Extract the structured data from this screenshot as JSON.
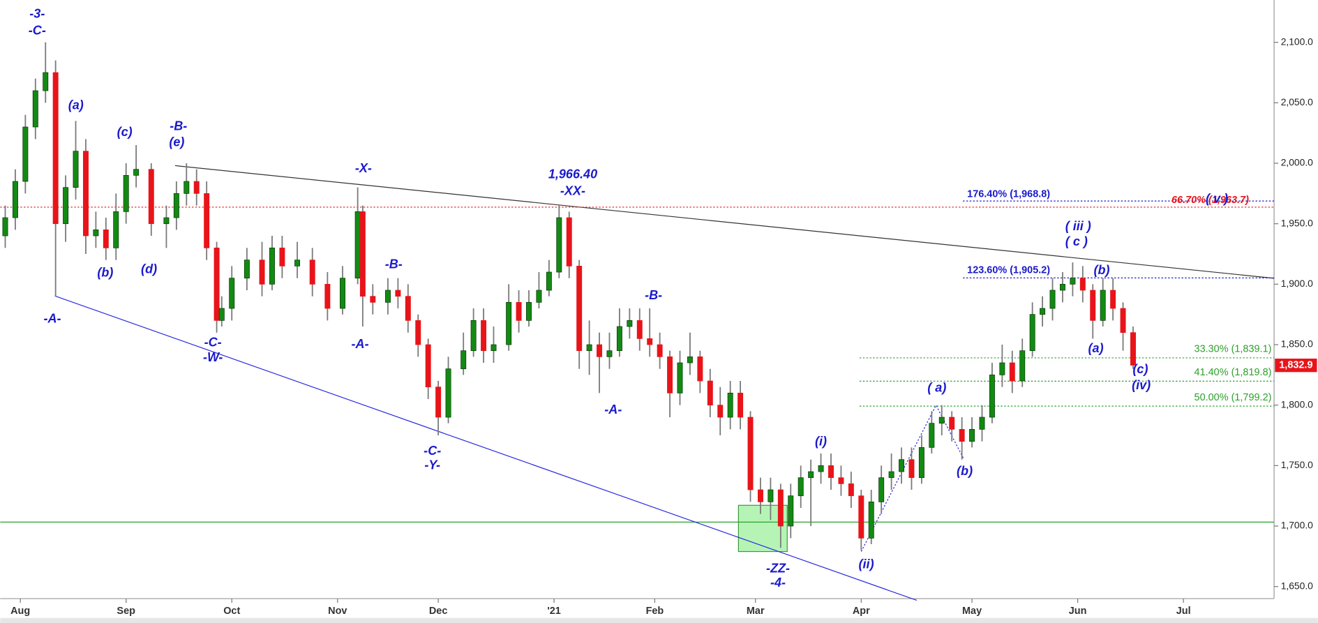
{
  "chart_data": {
    "type": "candlestick",
    "x": [
      -3,
      -1,
      1,
      3,
      5,
      7,
      9,
      11,
      13,
      15,
      17,
      19,
      21,
      23,
      26,
      29,
      31,
      33,
      35,
      37,
      39,
      40,
      42,
      45,
      48,
      50,
      52,
      55,
      58,
      61,
      64,
      67,
      68,
      70,
      73,
      75,
      77,
      79,
      81,
      83,
      85,
      88,
      90,
      92,
      94,
      97,
      99,
      101,
      103,
      105,
      107,
      109,
      111,
      113,
      115,
      117,
      119,
      121,
      123,
      125,
      127,
      129,
      131,
      133,
      135,
      137,
      139,
      141,
      143,
      145,
      147,
      149,
      151,
      153,
      155,
      157,
      159,
      161,
      163,
      165,
      167,
      169,
      171,
      173,
      175,
      177,
      179,
      181,
      183,
      185,
      187,
      189,
      191,
      193,
      195,
      197,
      199,
      201,
      203,
      205,
      207,
      209,
      211,
      213,
      215,
      217,
      219,
      221
    ],
    "open": [
      1940,
      1955,
      1985,
      2030,
      2060,
      2075,
      1950,
      1980,
      2010,
      1940,
      1945,
      1930,
      1960,
      1990,
      1995,
      1950,
      1955,
      1975,
      1985,
      1975,
      1930,
      1870,
      1880,
      1905,
      1920,
      1900,
      1930,
      1915,
      1920,
      1900,
      1880,
      1905,
      1960,
      1890,
      1885,
      1895,
      1890,
      1870,
      1850,
      1815,
      1790,
      1830,
      1845,
      1870,
      1845,
      1850,
      1885,
      1870,
      1885,
      1895,
      1910,
      1955,
      1915,
      1845,
      1850,
      1840,
      1845,
      1865,
      1870,
      1855,
      1850,
      1840,
      1810,
      1835,
      1840,
      1820,
      1800,
      1790,
      1810,
      1790,
      1730,
      1720,
      1730,
      1700,
      1725,
      1740,
      1745,
      1750,
      1740,
      1735,
      1725,
      1690,
      1720,
      1740,
      1745,
      1755,
      1740,
      1765,
      1785,
      1790,
      1780,
      1770,
      1780,
      1790,
      1825,
      1835,
      1820,
      1845,
      1875,
      1880,
      1895,
      1900,
      1905,
      1895,
      1870,
      1895,
      1880,
      1860
    ],
    "high": [
      1965,
      1995,
      2040,
      2070,
      2100,
      2085,
      1990,
      2035,
      2020,
      1960,
      1955,
      1975,
      2000,
      2015,
      2000,
      1965,
      1985,
      2000,
      1995,
      1985,
      1935,
      1890,
      1915,
      1930,
      1935,
      1940,
      1940,
      1935,
      1930,
      1910,
      1915,
      1980,
      1965,
      1900,
      1905,
      1905,
      1900,
      1875,
      1855,
      1820,
      1840,
      1860,
      1880,
      1880,
      1865,
      1900,
      1895,
      1895,
      1910,
      1920,
      1966,
      1960,
      1920,
      1870,
      1860,
      1860,
      1880,
      1880,
      1880,
      1880,
      1860,
      1845,
      1845,
      1860,
      1845,
      1830,
      1815,
      1820,
      1820,
      1795,
      1740,
      1740,
      1735,
      1735,
      1750,
      1755,
      1760,
      1760,
      1750,
      1745,
      1730,
      1730,
      1750,
      1760,
      1765,
      1765,
      1775,
      1795,
      1800,
      1795,
      1790,
      1790,
      1800,
      1835,
      1850,
      1845,
      1855,
      1885,
      1890,
      1905,
      1910,
      1918,
      1915,
      1900,
      1905,
      1905,
      1885,
      1865
    ],
    "low": [
      1930,
      1945,
      1975,
      2020,
      2050,
      1890,
      1935,
      1970,
      1925,
      1930,
      1920,
      1920,
      1950,
      1980,
      1940,
      1930,
      1945,
      1965,
      1965,
      1920,
      1860,
      1865,
      1870,
      1895,
      1890,
      1895,
      1905,
      1905,
      1890,
      1870,
      1875,
      1900,
      1865,
      1875,
      1875,
      1880,
      1860,
      1840,
      1805,
      1775,
      1785,
      1825,
      1840,
      1835,
      1835,
      1845,
      1860,
      1865,
      1880,
      1890,
      1905,
      1905,
      1830,
      1825,
      1810,
      1830,
      1840,
      1855,
      1845,
      1840,
      1830,
      1790,
      1800,
      1825,
      1810,
      1790,
      1775,
      1780,
      1780,
      1720,
      1710,
      1705,
      1682,
      1690,
      1715,
      1700,
      1735,
      1730,
      1725,
      1715,
      1680,
      1685,
      1710,
      1730,
      1735,
      1730,
      1735,
      1760,
      1775,
      1770,
      1755,
      1765,
      1770,
      1785,
      1815,
      1810,
      1815,
      1840,
      1865,
      1870,
      1885,
      1890,
      1885,
      1855,
      1865,
      1870,
      1845,
      1830
    ],
    "close": [
      1955,
      1985,
      2030,
      2060,
      2075,
      1950,
      1980,
      2010,
      1940,
      1945,
      1930,
      1960,
      1990,
      1995,
      1950,
      1955,
      1975,
      1985,
      1975,
      1930,
      1870,
      1880,
      1905,
      1920,
      1900,
      1930,
      1915,
      1920,
      1900,
      1880,
      1905,
      1960,
      1890,
      1885,
      1895,
      1890,
      1870,
      1850,
      1815,
      1790,
      1830,
      1845,
      1870,
      1845,
      1850,
      1885,
      1870,
      1885,
      1895,
      1910,
      1955,
      1915,
      1845,
      1850,
      1840,
      1845,
      1865,
      1870,
      1855,
      1850,
      1840,
      1810,
      1835,
      1840,
      1820,
      1800,
      1790,
      1810,
      1790,
      1730,
      1720,
      1730,
      1700,
      1725,
      1740,
      1745,
      1750,
      1740,
      1735,
      1725,
      1690,
      1720,
      1740,
      1745,
      1755,
      1740,
      1765,
      1785,
      1790,
      1780,
      1770,
      1780,
      1790,
      1825,
      1835,
      1820,
      1845,
      1875,
      1880,
      1895,
      1900,
      1905,
      1895,
      1870,
      1895,
      1880,
      1860,
      1833
    ],
    "up_color": "#138a13",
    "down_color": "#e8141a",
    "xlim": [
      -4,
      249
    ],
    "ylim": [
      1640,
      2135
    ],
    "xticks": [
      {
        "value": 0,
        "label": "Aug"
      },
      {
        "value": 21,
        "label": "Sep"
      },
      {
        "value": 42,
        "label": "Oct"
      },
      {
        "value": 63,
        "label": "Nov"
      },
      {
        "value": 83,
        "label": "Dec"
      },
      {
        "value": 106,
        "label": "'21"
      },
      {
        "value": 126,
        "label": "Feb"
      },
      {
        "value": 146,
        "label": "Mar"
      },
      {
        "value": 167,
        "label": "Apr"
      },
      {
        "value": 189,
        "label": "May"
      },
      {
        "value": 210,
        "label": "Jun"
      },
      {
        "value": 231,
        "label": "Jul"
      }
    ],
    "yticks": [
      {
        "value": 1650,
        "label": "1,650.0"
      },
      {
        "value": 1700,
        "label": "1,700.0"
      },
      {
        "value": 1750,
        "label": "1,750.0"
      },
      {
        "value": 1800,
        "label": "1,800.0"
      },
      {
        "value": 1850,
        "label": "1,850.0"
      },
      {
        "value": 1900,
        "label": "1,900.0"
      },
      {
        "value": 1950,
        "label": "1,950.0"
      },
      {
        "value": 2000,
        "label": "2,000.0"
      },
      {
        "value": 2050,
        "label": "2,050.0"
      },
      {
        "value": 2100,
        "label": "2,100.0"
      }
    ],
    "levels": [
      {
        "label": "176.40% (1,968.8)",
        "value": 1968.8,
        "color": "#1a1acc"
      },
      {
        "label": "66.70% (1,963.7)",
        "value": 1963.7,
        "color": "#e8141a"
      },
      {
        "label": "123.60% (1,905.2)",
        "value": 1905.2,
        "color": "#1a1acc"
      },
      {
        "label": "33.30% (1,839.1)",
        "value": 1839.1,
        "color": "#2ca02c"
      },
      {
        "label": "41.40% (1,819.8)",
        "value": 1819.8,
        "color": "#2ca02c"
      },
      {
        "label": "50.00% (1,799.2)",
        "value": 1799.2,
        "color": "#2ca02c"
      }
    ],
    "last_price": {
      "value": 1832.9,
      "label": "1,832.9"
    },
    "annotations": [
      "-3-",
      "-C-",
      "(a)",
      "-A-",
      "(b)",
      "(c)",
      "(d)",
      "-B-",
      "(e)",
      "-C-",
      "-W-",
      "-X-",
      "-A-",
      "-B-",
      "-C-",
      "-Y-",
      "1,966.40",
      "-XX-",
      "-B-",
      "-A-",
      "(i)",
      "-ZZ-",
      "-4-",
      "(ii)",
      "( a)",
      "(b)",
      "( iii )",
      "( c )",
      "(b)",
      "(a)",
      "(c)",
      "(iv)",
      "( v )"
    ]
  }
}
